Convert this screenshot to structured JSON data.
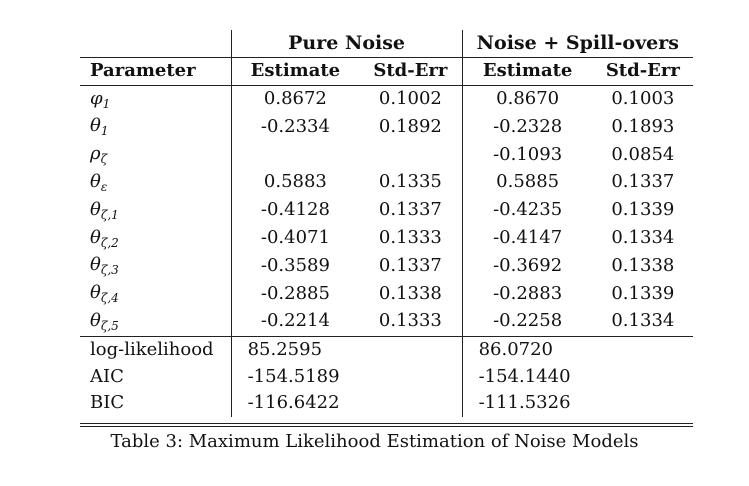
{
  "table": {
    "group_headers": [
      "Pure Noise",
      "Noise + Spill-overs"
    ],
    "column_headers": [
      "Parameter",
      "Estimate",
      "Std-Err",
      "Estimate",
      "Std-Err"
    ],
    "parameter_rows": [
      {
        "symbol": "φ",
        "sub": "1",
        "est1": "0.8672",
        "se1": "0.1002",
        "est2": "0.8670",
        "se2": "0.1003"
      },
      {
        "symbol": "θ",
        "sub": "1",
        "est1": "-0.2334",
        "se1": "0.1892",
        "est2": "-0.2328",
        "se2": "0.1893"
      },
      {
        "symbol": "ρ",
        "sub": "ζ",
        "est1": "",
        "se1": "",
        "est2": "-0.1093",
        "se2": "0.0854"
      },
      {
        "symbol": "θ",
        "sub": "ε",
        "est1": "0.5883",
        "se1": "0.1335",
        "est2": "0.5885",
        "se2": "0.1337"
      },
      {
        "symbol": "θ",
        "sub": "ζ,1",
        "est1": "-0.4128",
        "se1": "0.1337",
        "est2": "-0.4235",
        "se2": "0.1339"
      },
      {
        "symbol": "θ",
        "sub": "ζ,2",
        "est1": "-0.4071",
        "se1": "0.1333",
        "est2": "-0.4147",
        "se2": "0.1334"
      },
      {
        "symbol": "θ",
        "sub": "ζ,3",
        "est1": "-0.3589",
        "se1": "0.1337",
        "est2": "-0.3692",
        "se2": "0.1338"
      },
      {
        "symbol": "θ",
        "sub": "ζ,4",
        "est1": "-0.2885",
        "se1": "0.1338",
        "est2": "-0.2883",
        "se2": "0.1339"
      },
      {
        "symbol": "θ",
        "sub": "ζ,5",
        "est1": "-0.2214",
        "se1": "0.1333",
        "est2": "-0.2258",
        "se2": "0.1334"
      }
    ],
    "stat_rows": [
      {
        "label": "log-likelihood",
        "val1": "85.2595",
        "val2": "86.0720"
      },
      {
        "label": "AIC",
        "val1": "-154.5189",
        "val2": "-154.1440"
      },
      {
        "label": "BIC",
        "val1": "-116.6422",
        "val2": "-111.5326"
      }
    ]
  },
  "caption": "Table 3: Maximum Likelihood Estimation of Noise Models"
}
